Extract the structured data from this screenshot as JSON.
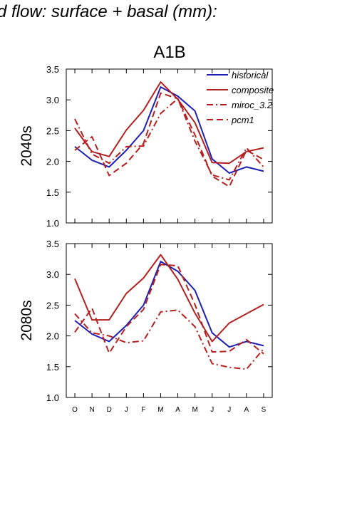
{
  "figure": {
    "header": "d flow: surface + basal (mm):",
    "scenario": "A1B"
  },
  "colors": {
    "historical": "#1f1fb4",
    "composite": "#b41f1f",
    "miroc_3.2": "#b41f1f",
    "pcm1": "#b41f1f"
  },
  "chart_data": [
    {
      "type": "line",
      "ylabel": "2040s",
      "ylim": [
        1.0,
        3.5
      ],
      "yticks": [
        "1.0",
        "1.5",
        "2.0",
        "2.5",
        "3.0",
        "3.5"
      ],
      "categories": [
        "O",
        "N",
        "D",
        "J",
        "F",
        "M",
        "A",
        "M",
        "J",
        "J",
        "A",
        "S"
      ],
      "legend_position": "top-right",
      "series": [
        {
          "name": "historical",
          "dash": "solid",
          "values": [
            2.24,
            2.02,
            1.91,
            2.18,
            2.5,
            3.21,
            3.06,
            2.82,
            2.04,
            1.81,
            1.91,
            1.84
          ]
        },
        {
          "name": "composite",
          "dash": "solid",
          "values": [
            2.54,
            2.16,
            2.08,
            2.51,
            2.83,
            3.29,
            3.01,
            2.63,
            1.98,
            1.97,
            2.16,
            2.22
          ]
        },
        {
          "name": "miroc_3.2",
          "dash": "dashdot",
          "values": [
            2.69,
            2.12,
            1.97,
            2.24,
            2.25,
            2.78,
            3.02,
            2.33,
            1.78,
            1.7,
            2.22,
            1.91
          ]
        },
        {
          "name": "pcm1",
          "dash": "dash",
          "values": [
            2.18,
            2.4,
            1.77,
            1.97,
            2.29,
            3.11,
            3.02,
            2.43,
            1.76,
            1.59,
            2.18,
            2.03
          ]
        }
      ]
    },
    {
      "type": "line",
      "ylabel": "2080s",
      "ylim": [
        1.0,
        3.5
      ],
      "yticks": [
        "1.0",
        "1.5",
        "2.0",
        "2.5",
        "3.0",
        "3.5"
      ],
      "categories": [
        "O",
        "N",
        "D",
        "J",
        "F",
        "M",
        "A",
        "M",
        "J",
        "J",
        "A",
        "S"
      ],
      "series": [
        {
          "name": "historical",
          "dash": "solid",
          "values": [
            2.25,
            2.03,
            1.91,
            2.17,
            2.5,
            3.21,
            3.05,
            2.74,
            2.05,
            1.82,
            1.91,
            1.84
          ]
        },
        {
          "name": "composite",
          "dash": "solid",
          "values": [
            2.93,
            2.26,
            2.26,
            2.69,
            2.94,
            3.32,
            2.92,
            2.37,
            1.91,
            2.21,
            2.36,
            2.51
          ]
        },
        {
          "name": "miroc_3.2",
          "dash": "dashdot",
          "values": [
            2.36,
            2.05,
            2.0,
            1.89,
            1.92,
            2.39,
            2.42,
            2.15,
            1.55,
            1.49,
            1.46,
            1.79
          ]
        },
        {
          "name": "pcm1",
          "dash": "dash",
          "values": [
            2.06,
            2.45,
            1.72,
            2.15,
            2.43,
            3.16,
            3.14,
            2.51,
            1.74,
            1.75,
            1.94,
            1.71
          ]
        }
      ]
    }
  ]
}
